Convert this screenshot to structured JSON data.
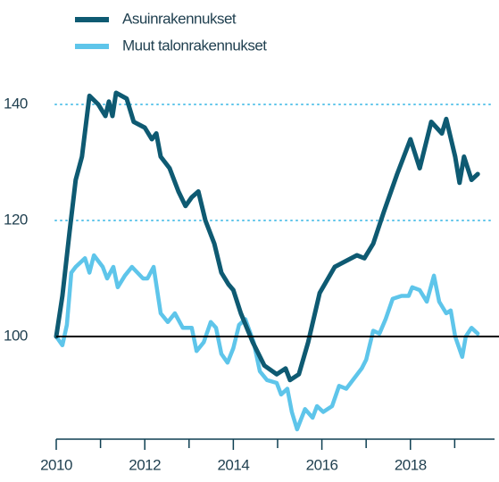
{
  "chart_data": {
    "type": "line",
    "xlim": [
      2010,
      2019.9
    ],
    "xticks": [
      2010,
      2012,
      2014,
      2016,
      2018
    ],
    "xticks_minor": [
      2011,
      2013,
      2015,
      2017,
      2019
    ],
    "ylim": [
      82,
      146
    ],
    "yticks": [
      100,
      120,
      140
    ],
    "grid": true,
    "baseline": 100,
    "legend": "top-left",
    "series": [
      {
        "name": "Asuinrakennukset",
        "color": "#0e5a72",
        "x": [
          2010,
          2010.14,
          2010.3,
          2010.44,
          2010.58,
          2010.75,
          2010.95,
          2011.11,
          2011.19,
          2011.27,
          2011.35,
          2011.59,
          2011.75,
          2012.0,
          2012.16,
          2012.26,
          2012.36,
          2012.56,
          2012.76,
          2012.92,
          2013.06,
          2013.21,
          2013.37,
          2013.57,
          2013.73,
          2013.89,
          2014.0,
          2014.17,
          2014.44,
          2014.7,
          2014.98,
          2015.18,
          2015.28,
          2015.48,
          2015.69,
          2015.95,
          2016.29,
          2016.79,
          2016.96,
          2017.16,
          2017.4,
          2017.7,
          2018.0,
          2018.21,
          2018.47,
          2018.71,
          2018.81,
          2019.01,
          2019.11,
          2019.21,
          2019.38,
          2019.52
        ],
        "values": [
          100,
          107,
          118,
          127,
          131,
          141.5,
          140,
          138,
          140.5,
          138,
          142,
          141,
          137,
          136,
          134,
          135,
          131,
          129,
          125,
          122.5,
          124,
          125,
          120,
          116,
          111,
          109,
          108,
          104,
          99,
          95,
          93.5,
          94.5,
          92.5,
          93.5,
          99,
          107.5,
          112,
          114,
          113.5,
          116,
          121.5,
          128,
          134,
          129,
          137,
          135,
          137.5,
          131,
          126.5,
          131,
          127,
          128
        ]
      },
      {
        "name": "Muut talonrakennukset",
        "color": "#5ec5ea",
        "x": [
          2010,
          2010.14,
          2010.24,
          2010.34,
          2010.44,
          2010.65,
          2010.75,
          2010.85,
          2011.05,
          2011.15,
          2011.29,
          2011.39,
          2011.55,
          2011.71,
          2011.96,
          2012.06,
          2012.2,
          2012.36,
          2012.52,
          2012.68,
          2012.86,
          2013.06,
          2013.17,
          2013.33,
          2013.49,
          2013.61,
          2013.73,
          2013.87,
          2014.0,
          2014.13,
          2014.27,
          2014.46,
          2014.6,
          2014.76,
          2014.98,
          2015.08,
          2015.22,
          2015.32,
          2015.44,
          2015.62,
          2015.79,
          2015.89,
          2016.03,
          2016.23,
          2016.39,
          2016.55,
          2016.75,
          2016.9,
          2017.0,
          2017.16,
          2017.3,
          2017.44,
          2017.6,
          2017.8,
          2017.96,
          2018.04,
          2018.21,
          2018.37,
          2018.53,
          2018.65,
          2018.81,
          2018.91,
          2019.01,
          2019.17,
          2019.25,
          2019.38,
          2019.52
        ],
        "values": [
          100,
          98.5,
          102,
          111,
          112,
          113.5,
          111,
          114,
          112,
          110,
          112,
          108.5,
          110.5,
          112,
          110,
          110,
          112,
          104,
          102.5,
          104,
          101.5,
          101.5,
          97.5,
          99,
          102.5,
          101.5,
          97,
          95.5,
          98,
          102,
          103,
          99,
          94,
          92.5,
          92,
          90,
          91,
          87,
          84,
          87.5,
          86,
          88,
          87,
          88,
          91.5,
          91,
          93,
          94.5,
          96,
          101,
          100.5,
          103,
          106.5,
          107,
          107,
          108.5,
          108,
          106,
          110.5,
          106,
          104,
          104.5,
          100,
          96.5,
          100,
          101.5,
          100.5
        ]
      }
    ]
  }
}
